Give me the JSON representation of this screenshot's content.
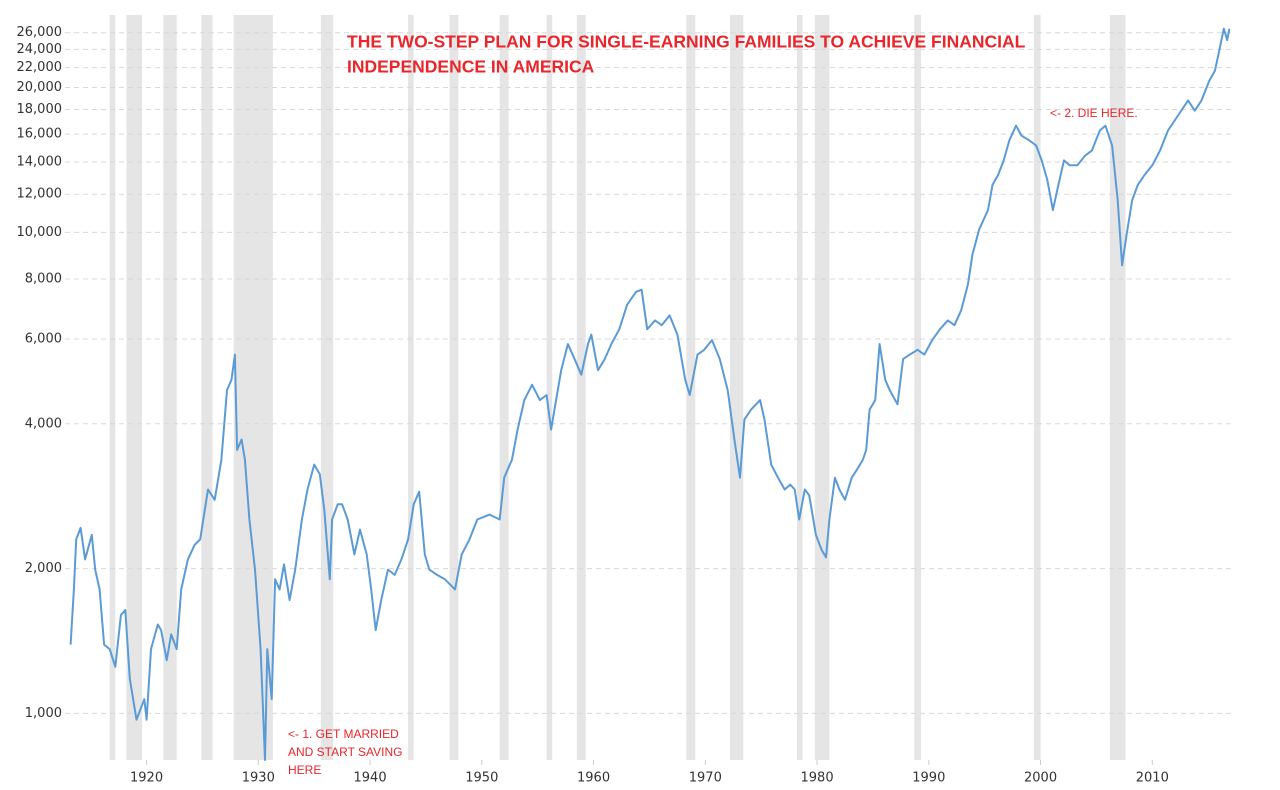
{
  "chart_data": {
    "type": "line",
    "title": [
      "THE TWO-STEP PLAN FOR SINGLE-EARNING FAMILIES TO ACHIEVE FINANCIAL",
      "INDEPENDENCE IN AMERICA"
    ],
    "annotations": [
      [
        "<- 2. DIE HERE."
      ],
      [
        "<- 1. GET MARRIED",
        "AND START SAVING",
        "HERE"
      ]
    ],
    "log_y": true,
    "grid": true,
    "xlim": [
      1912.7,
      2017.4
    ],
    "ylim": [
      800,
      28300
    ],
    "xticks": [
      1920,
      1930,
      1940,
      1950,
      1960,
      1970,
      1980,
      1990,
      2000,
      2010
    ],
    "yticks": [
      {
        "value": 1000,
        "label": "1,000"
      },
      {
        "value": 2000,
        "label": "2,000"
      },
      {
        "value": 4000,
        "label": "4,000"
      },
      {
        "value": 6000,
        "label": "6,000"
      },
      {
        "value": 8000,
        "label": "8,000"
      },
      {
        "value": 10000,
        "label": "10,000"
      },
      {
        "value": 12000,
        "label": "12,000"
      },
      {
        "value": 14000,
        "label": "14,000"
      },
      {
        "value": 16000,
        "label": "16,000"
      },
      {
        "value": 18000,
        "label": "18,000"
      },
      {
        "value": 20000,
        "label": "20,000"
      },
      {
        "value": 22000,
        "label": "22,000"
      },
      {
        "value": 24000,
        "label": "24,000"
      },
      {
        "value": 26000,
        "label": "26,000"
      }
    ],
    "shaded_color": "#e5e5e5",
    "shaded": [
      [
        1916.7,
        1917.2
      ],
      [
        1918.2,
        1919.6
      ],
      [
        1921.5,
        1922.7
      ],
      [
        1924.9,
        1925.9
      ],
      [
        1927.8,
        1931.3
      ],
      [
        1935.6,
        1936.7
      ],
      [
        1943.4,
        1943.9
      ],
      [
        1947.1,
        1947.9
      ],
      [
        1951.6,
        1952.4
      ],
      [
        1955.8,
        1956.3
      ],
      [
        1958.5,
        1959.3
      ],
      [
        1968.3,
        1969.1
      ],
      [
        1972.2,
        1973.4
      ],
      [
        1978.2,
        1978.7
      ],
      [
        1979.8,
        1981.1
      ],
      [
        1988.7,
        1989.3
      ],
      [
        1999.4,
        2000.0
      ],
      [
        2006.2,
        2007.6
      ]
    ],
    "color": "#5b9bd5",
    "x": [
      1913.2,
      1913.5,
      1913.7,
      1914.1,
      1914.5,
      1915.1,
      1915.4,
      1915.8,
      1916.2,
      1916.7,
      1917.2,
      1917.7,
      1918.1,
      1918.5,
      1919.1,
      1919.8,
      1920.0,
      1920.4,
      1921.0,
      1921.3,
      1921.8,
      1922.2,
      1922.7,
      1923.1,
      1923.7,
      1924.3,
      1924.8,
      1925.5,
      1926.1,
      1926.7,
      1927.2,
      1927.6,
      1927.9,
      1928.1,
      1928.5,
      1928.8,
      1929.2,
      1929.7,
      1930.2,
      1930.6,
      1930.8,
      1931.2,
      1931.5,
      1931.9,
      1932.3,
      1932.8,
      1933.3,
      1933.9,
      1934.4,
      1935.0,
      1935.5,
      1935.9,
      1936.4,
      1936.6,
      1937.1,
      1937.5,
      1938.0,
      1938.6,
      1939.1,
      1939.7,
      1940.1,
      1940.5,
      1941.0,
      1941.6,
      1942.2,
      1942.8,
      1943.4,
      1943.9,
      1944.4,
      1944.9,
      1945.3,
      1946.0,
      1946.7,
      1947.6,
      1948.2,
      1948.9,
      1949.6,
      1950.7,
      1951.6,
      1952.0,
      1952.7,
      1953.2,
      1953.8,
      1954.5,
      1955.2,
      1955.8,
      1956.2,
      1956.8,
      1957.1,
      1957.7,
      1958.3,
      1958.9,
      1959.5,
      1959.8,
      1960.4,
      1961.0,
      1961.6,
      1962.3,
      1963.0,
      1963.8,
      1964.3,
      1964.8,
      1965.5,
      1966.1,
      1966.8,
      1967.5,
      1968.2,
      1968.6,
      1969.3,
      1969.9,
      1970.6,
      1971.3,
      1972.0,
      1972.6,
      1973.1,
      1973.5,
      1974.1,
      1974.9,
      1975.3,
      1975.9,
      1976.5,
      1977.1,
      1977.6,
      1978.0,
      1978.4,
      1978.9,
      1979.3,
      1979.9,
      1980.4,
      1980.8,
      1981.1,
      1981.6,
      1982.0,
      1982.5,
      1983.1,
      1983.6,
      1984.1,
      1984.4,
      1984.7,
      1985.2,
      1985.6,
      1986.1,
      1986.5,
      1987.2,
      1987.7,
      1988.3,
      1989.0,
      1989.6,
      1990.3,
      1991.0,
      1991.7,
      1992.3,
      1992.9,
      1993.5,
      1993.9,
      1994.5,
      1995.3,
      1995.7,
      1996.2,
      1996.7,
      1997.2,
      1997.8,
      1998.3,
      1999.0,
      1999.6,
      2000.1,
      2000.6,
      2001.1,
      2001.5,
      2002.1,
      2002.6,
      2003.3,
      2004.0,
      2004.6,
      2005.3,
      2005.8,
      2006.4,
      2006.9,
      2007.3,
      2007.7,
      2008.2,
      2008.7,
      2009.3,
      2010.0,
      2010.7,
      2011.4,
      2012.3,
      2013.2,
      2013.8,
      2014.4,
      2015.1,
      2015.6,
      2016.0,
      2016.4,
      2016.7,
      2016.9
    ],
    "values": [
      1390,
      1810,
      2300,
      2430,
      2090,
      2350,
      1990,
      1810,
      1390,
      1360,
      1250,
      1600,
      1640,
      1180,
      970,
      1070,
      970,
      1360,
      1530,
      1490,
      1290,
      1460,
      1360,
      1810,
      2090,
      2240,
      2300,
      2920,
      2780,
      3370,
      4700,
      4940,
      5570,
      3530,
      3710,
      3370,
      2530,
      1990,
      1360,
      800,
      1360,
      1070,
      1900,
      1810,
      2040,
      1720,
      1990,
      2530,
      2920,
      3290,
      3140,
      2650,
      1900,
      2530,
      2720,
      2720,
      2530,
      2140,
      2410,
      2140,
      1810,
      1490,
      1720,
      1990,
      1940,
      2090,
      2300,
      2720,
      2890,
      2140,
      1990,
      1940,
      1900,
      1810,
      2140,
      2300,
      2530,
      2590,
      2530,
      3090,
      3370,
      3890,
      4480,
      4820,
      4480,
      4590,
      3890,
      4700,
      5170,
      5860,
      5450,
      5060,
      5860,
      6130,
      5170,
      5450,
      5860,
      6290,
      7070,
      7520,
      7600,
      6290,
      6560,
      6410,
      6720,
      6130,
      4940,
      4590,
      5570,
      5700,
      5970,
      5450,
      4700,
      3710,
      3090,
      4080,
      4280,
      4480,
      4080,
      3290,
      3090,
      2920,
      2990,
      2920,
      2530,
      2920,
      2840,
      2350,
      2190,
      2110,
      2530,
      3090,
      2920,
      2780,
      3090,
      3220,
      3370,
      3530,
      4280,
      4480,
      5860,
      4940,
      4700,
      4390,
      5450,
      5570,
      5700,
      5570,
      5970,
      6290,
      6560,
      6410,
      6890,
      7790,
      8980,
      10130,
      11130,
      12550,
      13160,
      14110,
      15520,
      16660,
      15880,
      15520,
      15160,
      14110,
      12850,
      11130,
      12260,
      14110,
      13780,
      13780,
      14450,
      14800,
      16280,
      16660,
      15160,
      11670,
      8540,
      9890,
      11670,
      12550,
      13160,
      13780,
      14800,
      16280,
      17490,
      18800,
      17900,
      18800,
      20650,
      21670,
      23950,
      26500,
      25100,
      26500
    ]
  }
}
